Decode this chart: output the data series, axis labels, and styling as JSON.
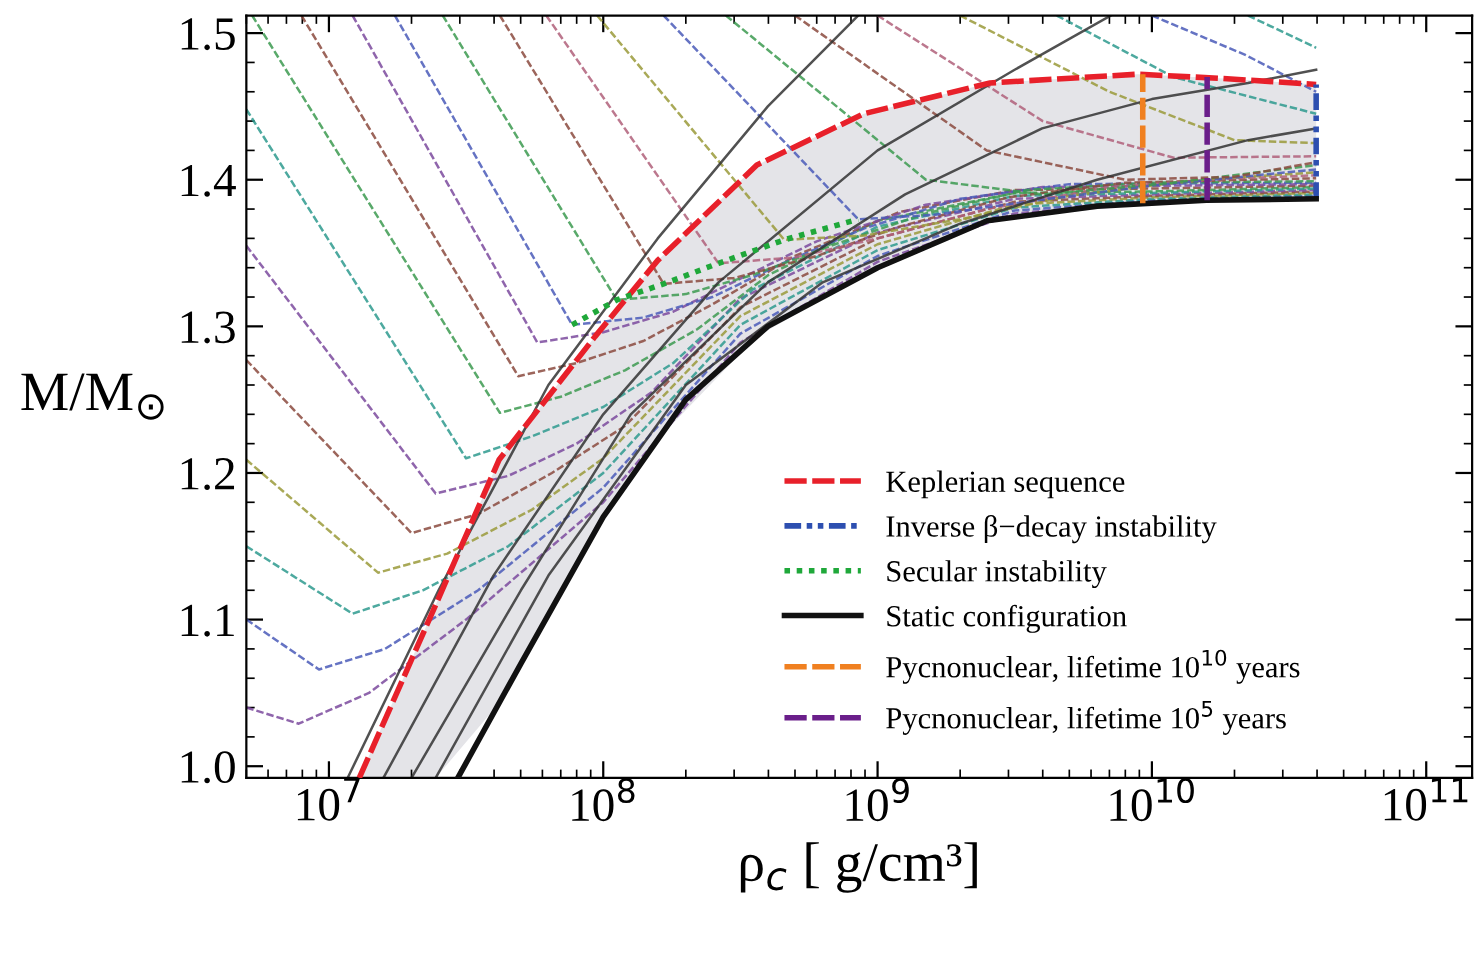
{
  "chart_data": {
    "type": "line",
    "xlabel": "ρ$_{c}$ [ g/cm³]",
    "ylabel": "M/M$_{⊙}$",
    "log": "x",
    "xlim": [
      5000000.0,
      147000000000.0
    ],
    "ylim": [
      0.992,
      1.512
    ],
    "xticks": [
      {
        "value": 10000000.0,
        "label": "10$^{7}$"
      },
      {
        "value": 100000000.0,
        "label": "10$^{8}$"
      },
      {
        "value": 1000000000.0,
        "label": "10$^{9}$"
      },
      {
        "value": 10000000000.0,
        "label": "10$^{10}$"
      },
      {
        "value": 100000000000.0,
        "label": "10$^{11}$"
      }
    ],
    "yticks": [
      {
        "value": 1.0,
        "label": "1.0"
      },
      {
        "value": 1.1,
        "label": "1.1"
      },
      {
        "value": 1.2,
        "label": "1.2"
      },
      {
        "value": 1.3,
        "label": "1.3"
      },
      {
        "value": 1.4,
        "label": "1.4"
      },
      {
        "value": 1.5,
        "label": "1.5"
      }
    ],
    "grid": false,
    "legend": "lower right",
    "marker": "none",
    "series": [
      {
        "line_style": "dashed",
        "color": "#7b4a9e",
        "x": [
          5000000.0,
          7760000.0,
          14000000.0,
          31600000.0,
          100000000.0,
          316000000.0,
          1000000000.0,
          3160000000.0,
          10000000000.0,
          39700000000.0
        ],
        "values": [
          1.04,
          1.029,
          1.05,
          1.1,
          1.18,
          1.289,
          1.344,
          1.377,
          1.385,
          1.388
        ]
      },
      {
        "line_style": "dashed",
        "color": "#4a5ab8",
        "x": [
          5000000.0,
          9200000.0,
          16000000.0,
          35000000.0,
          100000000.0,
          316000000.0,
          1000000000.0,
          3160000000.0,
          10000000000.0,
          39700000000.0
        ],
        "values": [
          1.1,
          1.066,
          1.08,
          1.12,
          1.19,
          1.295,
          1.348,
          1.379,
          1.386,
          1.389
        ]
      },
      {
        "line_style": "dashed",
        "color": "#2e9a8e",
        "x": [
          5000000.0,
          12200000.0,
          22000000.0,
          45000000.0,
          100000000.0,
          316000000.0,
          1000000000.0,
          3160000000.0,
          10000000000.0,
          39700000000.0
        ],
        "values": [
          1.15,
          1.104,
          1.12,
          1.15,
          1.2,
          1.301,
          1.352,
          1.381,
          1.387,
          1.39
        ]
      },
      {
        "line_style": "dashed",
        "color": "#9a9a3a",
        "x": [
          5000000.0,
          15100000.0,
          27000000.0,
          55000000.0,
          100000000.0,
          316000000.0,
          1000000000.0,
          3160000000.0,
          10000000000.0,
          39700000000.0
        ],
        "values": [
          1.209,
          1.132,
          1.145,
          1.175,
          1.21,
          1.307,
          1.356,
          1.383,
          1.388,
          1.391
        ]
      },
      {
        "line_style": "dashed",
        "color": "#8b4a3e",
        "x": [
          5000000.0,
          20000000.0,
          35000000.0,
          65000000.0,
          120000000.0,
          316000000.0,
          1000000000.0,
          3160000000.0,
          10000000000.0,
          39700000000.0
        ],
        "values": [
          1.277,
          1.159,
          1.172,
          1.2,
          1.232,
          1.313,
          1.36,
          1.385,
          1.389,
          1.392
        ]
      },
      {
        "line_style": "dashed",
        "color": "#7b4a9e",
        "x": [
          5000000.0,
          24500000.0,
          45000000.0,
          80000000.0,
          150000000.0,
          316000000.0,
          1000000000.0,
          3160000000.0,
          10000000000.0,
          39700000000.0
        ],
        "values": [
          1.355,
          1.186,
          1.198,
          1.22,
          1.255,
          1.319,
          1.364,
          1.387,
          1.39,
          1.393
        ]
      },
      {
        "line_style": "dashed",
        "color": "#2e9a8e",
        "x": [
          5000000.0,
          31600000.0,
          55000000.0,
          100000000.0,
          180000000.0,
          350000000.0,
          1000000000.0,
          3160000000.0,
          10000000000.0,
          39700000000.0
        ],
        "values": [
          1.448,
          1.21,
          1.225,
          1.245,
          1.275,
          1.325,
          1.368,
          1.389,
          1.391,
          1.394
        ]
      },
      {
        "line_style": "dashed",
        "color": "#3c9a50",
        "x": [
          5250000.0,
          42000000.0,
          70000000.0,
          120000000.0,
          220000000.0,
          400000000.0,
          1000000000.0,
          3160000000.0,
          10000000000.0,
          39700000000.0
        ],
        "values": [
          1.512,
          1.241,
          1.252,
          1.27,
          1.298,
          1.335,
          1.372,
          1.391,
          1.392,
          1.395
        ]
      },
      {
        "line_style": "dashed",
        "color": "#8b4a3e",
        "x": [
          7940000.0,
          49000000.0,
          80000000.0,
          140000000.0,
          250000000.0,
          500000000.0,
          1200000000.0,
          3160000000.0,
          10000000000.0,
          39700000000.0
        ],
        "values": [
          1.512,
          1.266,
          1.275,
          1.29,
          1.315,
          1.348,
          1.378,
          1.393,
          1.394,
          1.396
        ]
      },
      {
        "line_style": "dashed",
        "color": "#7b4a9e",
        "x": [
          12200000.0,
          57500000.0,
          100000000.0,
          180000000.0,
          320000000.0,
          600000000.0,
          1500000000.0,
          4000000000.0,
          12000000000.0,
          39700000000.0
        ],
        "values": [
          1.512,
          1.289,
          1.296,
          1.31,
          1.333,
          1.358,
          1.383,
          1.395,
          1.396,
          1.397
        ]
      },
      {
        "line_style": "dashed",
        "color": "#4a5ab8",
        "x": [
          17400000.0,
          77000000.0,
          140000000.0,
          250000000.0,
          450000000.0,
          900000000.0,
          2000000000.0,
          5000000000.0,
          39700000000.0
        ],
        "values": [
          1.512,
          1.301,
          1.306,
          1.32,
          1.343,
          1.367,
          1.387,
          1.397,
          1.398
        ]
      },
      {
        "line_style": "dashed",
        "color": "#3c9a50",
        "x": [
          26000000.0,
          112000000.0,
          200000000.0,
          350000000.0,
          700000000.0,
          1500000000.0,
          3500000000.0,
          10000000000.0,
          39700000000.0
        ],
        "values": [
          1.512,
          1.318,
          1.322,
          1.335,
          1.356,
          1.377,
          1.393,
          1.398,
          1.399
        ]
      },
      {
        "line_style": "dashed",
        "color": "#8b4a3e",
        "x": [
          42000000.0,
          166000000.0,
          300000000.0,
          600000000.0,
          1200000000.0,
          3000000000.0,
          8000000000.0,
          39700000000.0
        ],
        "values": [
          1.512,
          1.329,
          1.333,
          1.348,
          1.368,
          1.388,
          1.398,
          1.401
        ]
      },
      {
        "line_style": "dashed",
        "color": "#b0607a",
        "x": [
          62000000.0,
          263000000.0,
          500000000.0,
          1000000000.0,
          2500000000.0,
          7000000000.0,
          20000000000.0,
          39700000000.0
        ],
        "values": [
          1.512,
          1.343,
          1.347,
          1.36,
          1.38,
          1.395,
          1.401,
          1.403
        ]
      },
      {
        "line_style": "dashed",
        "color": "#9a9a3a",
        "x": [
          95000000.0,
          457000000.0,
          900000000.0,
          2000000000.0,
          5000000000.0,
          15000000000.0,
          39700000000.0
        ],
        "values": [
          1.512,
          1.359,
          1.362,
          1.373,
          1.389,
          1.4,
          1.405
        ]
      },
      {
        "line_style": "dashed",
        "color": "#4a5ab8",
        "x": [
          166000000.0,
          850000000.0,
          1600000000.0,
          3500000000.0,
          10000000000.0,
          39700000000.0
        ],
        "values": [
          1.512,
          1.373,
          1.376,
          1.385,
          1.396,
          1.407
        ]
      },
      {
        "line_style": "dashed",
        "color": "#3c9a50",
        "x": [
          280000000.0,
          1500000000.0,
          4000000000.0,
          12000000000.0,
          39700000000.0
        ],
        "values": [
          1.512,
          1.4,
          1.39,
          1.398,
          1.41
        ]
      },
      {
        "line_style": "dashed",
        "color": "#8b4a3e",
        "x": [
          500000000.0,
          2500000000.0,
          8000000000.0,
          20000000000.0,
          39700000000.0
        ],
        "values": [
          1.512,
          1.42,
          1.4,
          1.402,
          1.412
        ]
      },
      {
        "line_style": "dashed",
        "color": "#b0607a",
        "x": [
          1000000000.0,
          4000000000.0,
          12000000000.0,
          39700000000.0
        ],
        "values": [
          1.512,
          1.44,
          1.415,
          1.416
        ]
      },
      {
        "line_style": "dashed",
        "color": "#9a9a3a",
        "x": [
          2000000000.0,
          7000000000.0,
          20000000000.0,
          39700000000.0
        ],
        "values": [
          1.512,
          1.46,
          1.427,
          1.425
        ]
      },
      {
        "line_style": "dashed",
        "color": "#2e9a8e",
        "x": [
          4500000000.0,
          12000000000.0,
          39700000000.0
        ],
        "values": [
          1.512,
          1.47,
          1.445
        ]
      },
      {
        "line_style": "dashed",
        "color": "#4a5ab8",
        "x": [
          10000000000.0,
          22000000000.0,
          39700000000.0
        ],
        "values": [
          1.512,
          1.485,
          1.46
        ]
      },
      {
        "line_style": "dashed",
        "color": "#2e9a8e",
        "x": [
          22400000000.0,
          39700000000.0
        ],
        "values": [
          1.512,
          1.49
        ]
      },
      {
        "line_style": "solid",
        "color": "#333333",
        "x": [
          11700000.0,
          25100000.0,
          63100000.0,
          158000000.0,
          398000000.0,
          850000000.0
        ],
        "values": [
          0.992,
          1.12,
          1.26,
          1.36,
          1.45,
          1.512
        ]
      },
      {
        "line_style": "solid",
        "color": "#333333",
        "x": [
          15800000.0,
          39800000.0,
          100000000.0,
          263000000.0,
          1000000000.0,
          3160000000.0,
          7080000000.0
        ],
        "values": [
          0.992,
          1.13,
          1.24,
          1.33,
          1.42,
          1.475,
          1.512
        ]
      },
      {
        "line_style": "solid",
        "color": "#333333",
        "x": [
          20000000.0,
          50100000.0,
          126000000.0,
          398000000.0,
          1260000000.0,
          3980000000.0,
          10000000000.0,
          22400000000.0,
          39700000000.0
        ],
        "values": [
          0.992,
          1.12,
          1.24,
          1.33,
          1.39,
          1.435,
          1.455,
          1.466,
          1.475
        ]
      },
      {
        "line_style": "solid",
        "color": "#333333",
        "x": [
          24500000.0,
          63100000.0,
          200000000.0,
          631000000.0,
          2000000000.0,
          6310000000.0,
          22400000000.0,
          39700000000.0
        ],
        "values": [
          0.992,
          1.13,
          1.26,
          1.33,
          1.37,
          1.4,
          1.427,
          1.435
        ]
      },
      {
        "name": "Keplerian sequence",
        "line_style": "dashed",
        "color": "#e8202a",
        "x": [
          12900000.0,
          24500000.0,
          41700000.0,
          93300000.0,
          158000000.0,
          363000000.0,
          891000000.0,
          2570000000.0,
          8910000000.0,
          18200000000.0,
          39700000000.0
        ],
        "values": [
          0.992,
          1.11,
          1.209,
          1.293,
          1.345,
          1.41,
          1.445,
          1.466,
          1.472,
          1.469,
          1.465
        ],
        "lower": [
          0.992,
          0.992,
          1.043,
          1.16,
          1.223,
          1.293,
          1.335,
          1.372,
          1.383,
          1.386,
          1.387
        ],
        "upper": [
          0.992,
          1.11,
          1.209,
          1.293,
          1.345,
          1.41,
          1.445,
          1.466,
          1.472,
          1.469,
          1.465
        ]
      },
      {
        "name": "Inverse β−decay instability",
        "line_style": "dashdot",
        "color": "#2d4fb0",
        "x": [
          39700000000.0,
          39700000000.0
        ],
        "values": [
          1.387,
          1.465
        ]
      },
      {
        "name": "Secular instability",
        "line_style": "dotted",
        "color": "#1fa83a",
        "x": [
          77000000.0,
          112000000.0,
          166000000.0,
          263000000.0,
          457000000.0,
          850000000.0
        ],
        "values": [
          1.301,
          1.318,
          1.329,
          1.343,
          1.359,
          1.373
        ]
      },
      {
        "name": "Static configuration",
        "line_style": "solid",
        "color": "#111111",
        "x": [
          29500000.0,
          50100000.0,
          100000000.0,
          200000000.0,
          398000000.0,
          1000000000.0,
          2510000000.0,
          6310000000.0,
          15800000000.0,
          39700000000.0
        ],
        "values": [
          0.992,
          1.07,
          1.17,
          1.25,
          1.3,
          1.34,
          1.372,
          1.382,
          1.386,
          1.387
        ]
      },
      {
        "name": "Pycnonuclear, lifetime 10$^{10}$ years",
        "line_style": "dashed",
        "color": "#f08020",
        "x": [
          9260000000.0,
          9260000000.0
        ],
        "values": [
          1.384,
          1.472
        ]
      },
      {
        "name": "Pycnonuclear, lifetime 10$^{5}$ years",
        "line_style": "dashed",
        "color": "#6a1e8a",
        "x": [
          15900000000.0,
          15900000000.0
        ],
        "values": [
          1.386,
          1.47
        ]
      }
    ]
  }
}
